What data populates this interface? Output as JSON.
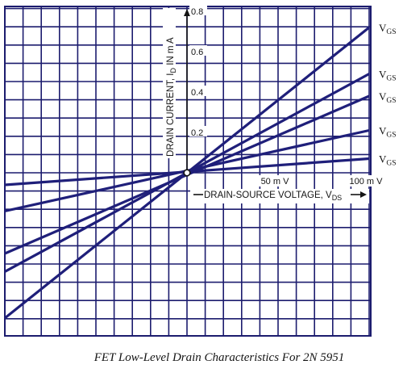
{
  "chart_data": {
    "type": "line",
    "caption": "FET Low-Level Drain Characteristics For 2N 5951",
    "ylabel": "DRAIN CURRENT, I_D IN m A",
    "ylabel_parts": {
      "main": "DRAIN CURRENT, I",
      "sub": "D",
      "rest": " IN m A"
    },
    "xlabel": "DRAIN-SOURCE VOLTAGE, V_DS",
    "xlabel_parts": {
      "main": "DRAIN-SOURCE VOLTAGE, V",
      "sub": "DS"
    },
    "x_unit": "mV",
    "y_unit": "mA",
    "xlim": [
      -100,
      100
    ],
    "ylim": [
      -0.8,
      0.8
    ],
    "grid": true,
    "x_tick_labels": [
      {
        "value": 50,
        "label": "50 m V"
      },
      {
        "value": 100,
        "label": "100 m V"
      }
    ],
    "y_tick_labels": [
      {
        "value": 0.2,
        "label": "0.2"
      },
      {
        "value": 0.4,
        "label": "0.4"
      },
      {
        "value": 0.6,
        "label": "0.6"
      },
      {
        "value": 0.8,
        "label": "0.8"
      }
    ],
    "series": [
      {
        "name": "V_GS",
        "x": [
          -100,
          100
        ],
        "y": [
          -0.72,
          0.72
        ]
      },
      {
        "name": "V_GS",
        "x": [
          -100,
          100
        ],
        "y": [
          -0.49,
          0.49
        ]
      },
      {
        "name": "V_GS",
        "x": [
          -100,
          100
        ],
        "y": [
          -0.4,
          0.38
        ]
      },
      {
        "name": "V_GS",
        "x": [
          -100,
          100
        ],
        "y": [
          -0.19,
          0.21
        ]
      },
      {
        "name": "V_GS",
        "x": [
          -100,
          100
        ],
        "y": [
          -0.06,
          0.07
        ]
      }
    ],
    "series_label_parts": {
      "main": "V",
      "sub": "GS"
    }
  },
  "colors": {
    "grid": "#1c1c6e",
    "lines": "#1f1f7a",
    "text": "#141414",
    "background": "#ffffff"
  }
}
